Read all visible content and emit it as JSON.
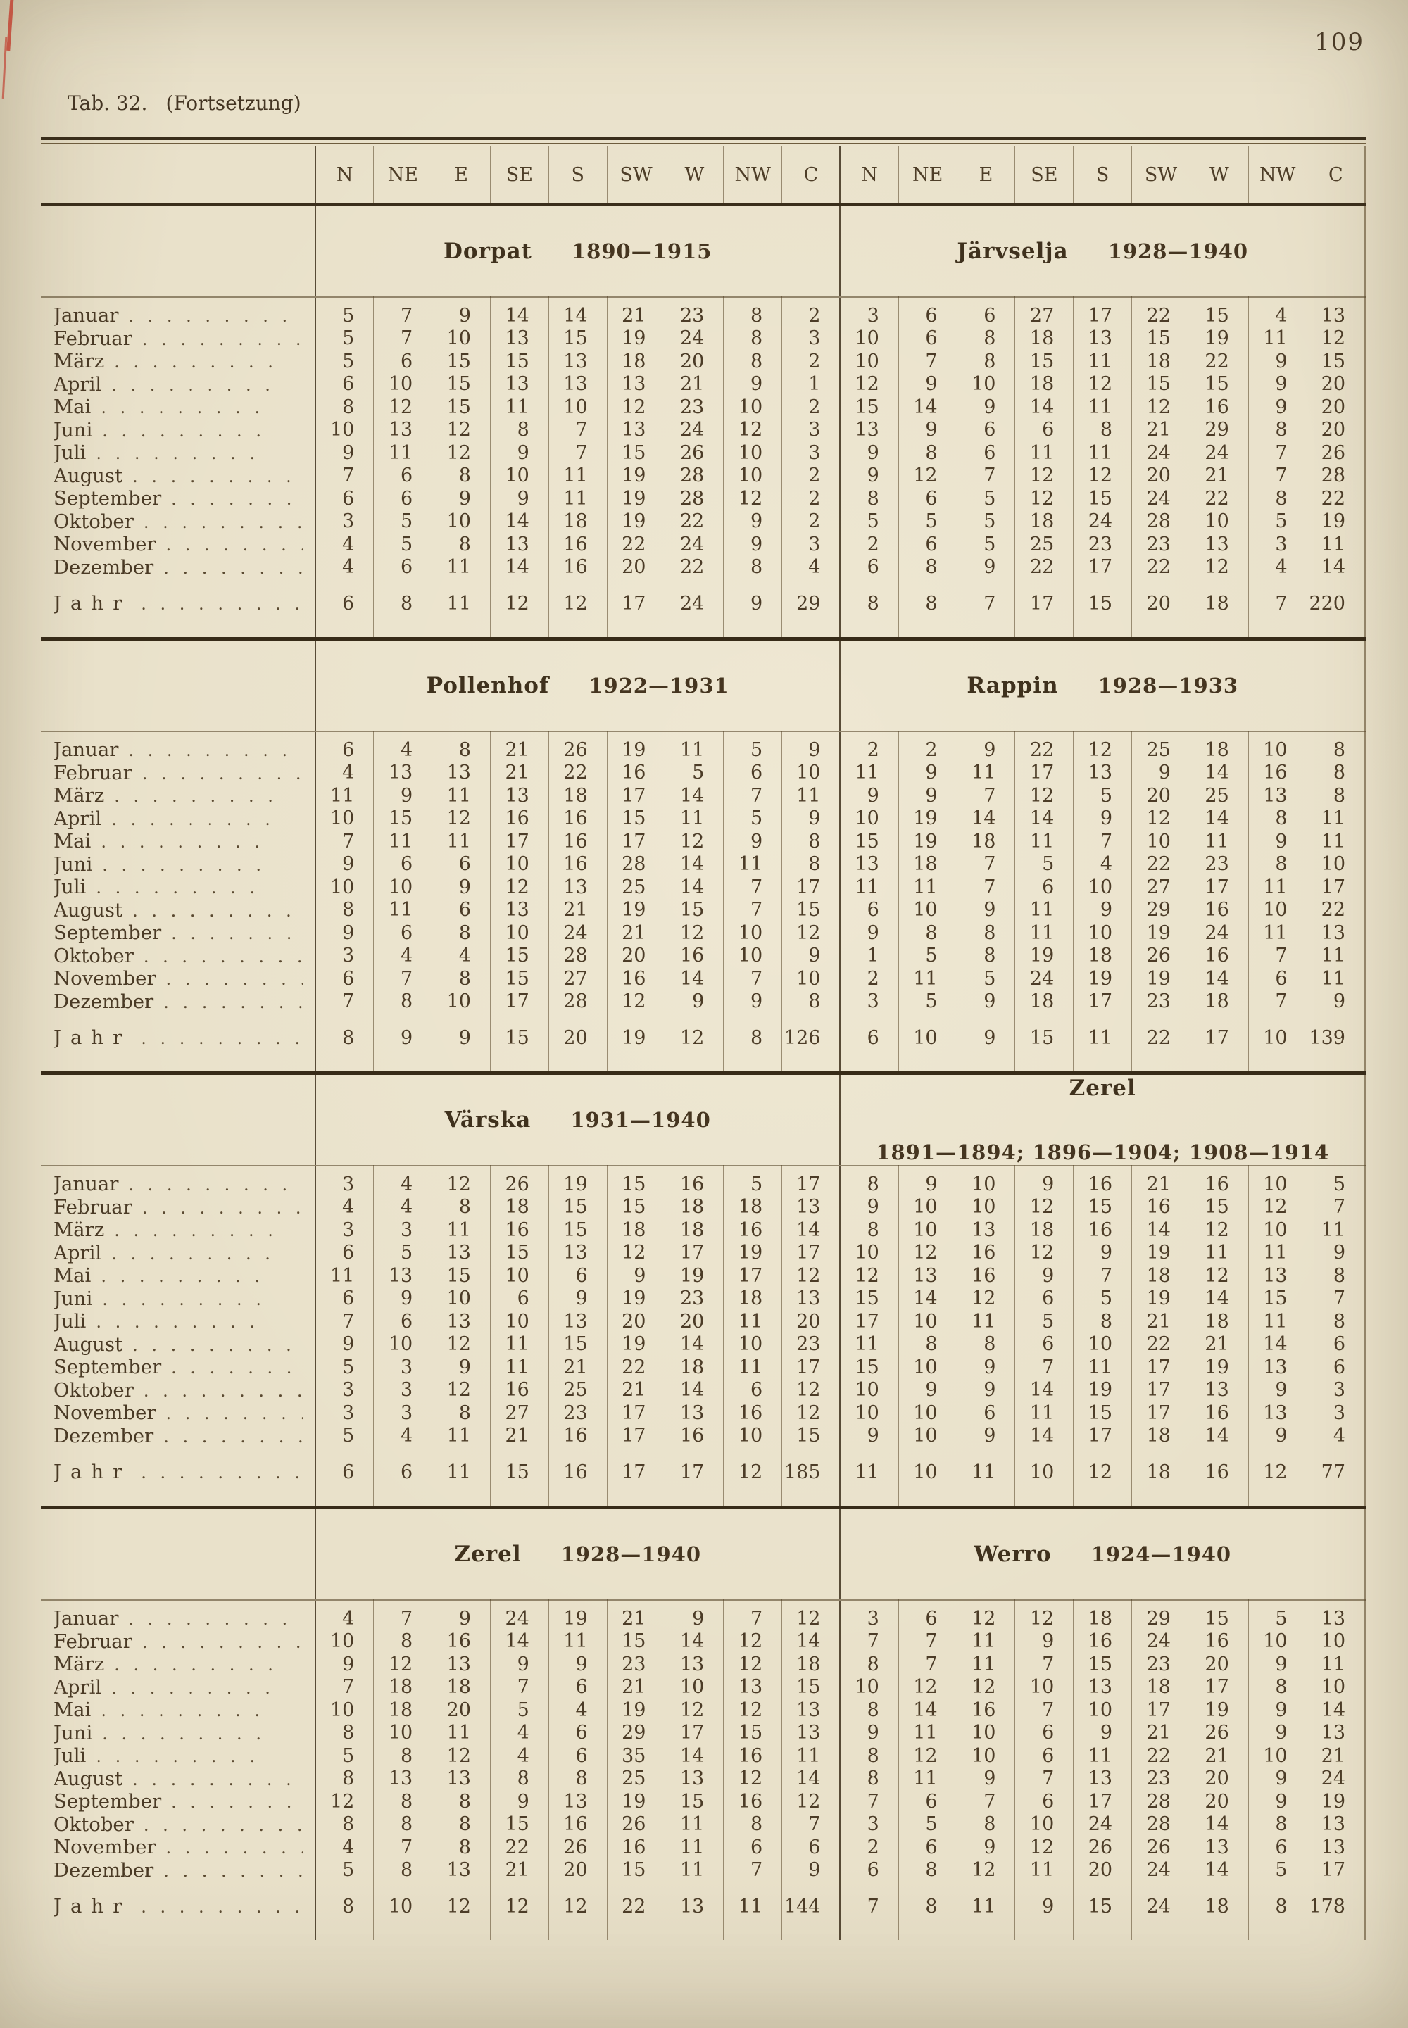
{
  "page": {
    "number": "109",
    "table_label": "Tab. 32.",
    "continuation": "(Fortsetzung)"
  },
  "directions": [
    "N",
    "NE",
    "E",
    "SE",
    "S",
    "SW",
    "W",
    "NW",
    "C"
  ],
  "months": [
    "Januar",
    "Februar",
    "März",
    "April",
    "Mai",
    "Juni",
    "Juli",
    "August",
    "September",
    "Oktober",
    "November",
    "Dezember"
  ],
  "jahr_label": "Jahr",
  "sections": [
    {
      "left": {
        "station": "Dorpat",
        "period": "1890—1915",
        "rows": [
          [
            5,
            7,
            9,
            14,
            14,
            21,
            23,
            8,
            2
          ],
          [
            5,
            7,
            10,
            13,
            15,
            19,
            24,
            8,
            3
          ],
          [
            5,
            6,
            15,
            15,
            13,
            18,
            20,
            8,
            2
          ],
          [
            6,
            10,
            15,
            13,
            13,
            13,
            21,
            9,
            1
          ],
          [
            8,
            12,
            15,
            11,
            10,
            12,
            23,
            10,
            2
          ],
          [
            10,
            13,
            12,
            8,
            7,
            13,
            24,
            12,
            3
          ],
          [
            9,
            11,
            12,
            9,
            7,
            15,
            26,
            10,
            3
          ],
          [
            7,
            6,
            8,
            10,
            11,
            19,
            28,
            10,
            2
          ],
          [
            6,
            6,
            9,
            9,
            11,
            19,
            28,
            12,
            2
          ],
          [
            3,
            5,
            10,
            14,
            18,
            19,
            22,
            9,
            2
          ],
          [
            4,
            5,
            8,
            13,
            16,
            22,
            24,
            9,
            3
          ],
          [
            4,
            6,
            11,
            14,
            16,
            20,
            22,
            8,
            4
          ]
        ],
        "jahr": [
          6,
          8,
          11,
          12,
          12,
          17,
          24,
          9,
          29
        ]
      },
      "right": {
        "station": "Järvselja",
        "period": "1928—1940",
        "rows": [
          [
            3,
            6,
            6,
            27,
            17,
            22,
            15,
            4,
            13
          ],
          [
            10,
            6,
            8,
            18,
            13,
            15,
            19,
            11,
            12
          ],
          [
            10,
            7,
            8,
            15,
            11,
            18,
            22,
            9,
            15
          ],
          [
            12,
            9,
            10,
            18,
            12,
            15,
            15,
            9,
            20
          ],
          [
            15,
            14,
            9,
            14,
            11,
            12,
            16,
            9,
            20
          ],
          [
            13,
            9,
            6,
            6,
            8,
            21,
            29,
            8,
            20
          ],
          [
            9,
            8,
            6,
            11,
            11,
            24,
            24,
            7,
            26
          ],
          [
            9,
            12,
            7,
            12,
            12,
            20,
            21,
            7,
            28
          ],
          [
            8,
            6,
            5,
            12,
            15,
            24,
            22,
            8,
            22
          ],
          [
            5,
            5,
            5,
            18,
            24,
            28,
            10,
            5,
            19
          ],
          [
            2,
            6,
            5,
            25,
            23,
            23,
            13,
            3,
            11
          ],
          [
            6,
            8,
            9,
            22,
            17,
            22,
            12,
            4,
            14
          ]
        ],
        "jahr": [
          8,
          8,
          7,
          17,
          15,
          20,
          18,
          7,
          220
        ]
      }
    },
    {
      "left": {
        "station": "Pollenhof",
        "period": "1922—1931",
        "rows": [
          [
            6,
            4,
            8,
            21,
            26,
            19,
            11,
            5,
            9
          ],
          [
            4,
            13,
            13,
            21,
            22,
            16,
            5,
            6,
            10
          ],
          [
            11,
            9,
            11,
            13,
            18,
            17,
            14,
            7,
            11
          ],
          [
            10,
            15,
            12,
            16,
            16,
            15,
            11,
            5,
            9
          ],
          [
            7,
            11,
            11,
            17,
            16,
            17,
            12,
            9,
            8
          ],
          [
            9,
            6,
            6,
            10,
            16,
            28,
            14,
            11,
            8
          ],
          [
            10,
            10,
            9,
            12,
            13,
            25,
            14,
            7,
            17
          ],
          [
            8,
            11,
            6,
            13,
            21,
            19,
            15,
            7,
            15
          ],
          [
            9,
            6,
            8,
            10,
            24,
            21,
            12,
            10,
            12
          ],
          [
            3,
            4,
            4,
            15,
            28,
            20,
            16,
            10,
            9
          ],
          [
            6,
            7,
            8,
            15,
            27,
            16,
            14,
            7,
            10
          ],
          [
            7,
            8,
            10,
            17,
            28,
            12,
            9,
            9,
            8
          ]
        ],
        "jahr": [
          8,
          9,
          9,
          15,
          20,
          19,
          12,
          8,
          126
        ]
      },
      "right": {
        "station": "Rappin",
        "period": "1928—1933",
        "rows": [
          [
            2,
            2,
            9,
            22,
            12,
            25,
            18,
            10,
            8
          ],
          [
            11,
            9,
            11,
            17,
            13,
            9,
            14,
            16,
            8
          ],
          [
            9,
            9,
            7,
            12,
            5,
            20,
            25,
            13,
            8
          ],
          [
            10,
            19,
            14,
            14,
            9,
            12,
            14,
            8,
            11
          ],
          [
            15,
            19,
            18,
            11,
            7,
            10,
            11,
            9,
            11
          ],
          [
            13,
            18,
            7,
            5,
            4,
            22,
            23,
            8,
            10
          ],
          [
            11,
            11,
            7,
            6,
            10,
            27,
            17,
            11,
            17
          ],
          [
            6,
            10,
            9,
            11,
            9,
            29,
            16,
            10,
            22
          ],
          [
            9,
            8,
            8,
            11,
            10,
            19,
            24,
            11,
            13
          ],
          [
            1,
            5,
            8,
            19,
            18,
            26,
            16,
            7,
            11
          ],
          [
            2,
            11,
            5,
            24,
            19,
            19,
            14,
            6,
            11
          ],
          [
            3,
            5,
            9,
            18,
            17,
            23,
            18,
            7,
            9
          ]
        ],
        "jahr": [
          6,
          10,
          9,
          15,
          11,
          22,
          17,
          10,
          139
        ]
      }
    },
    {
      "left": {
        "station": "Värska",
        "period": "1931—1940",
        "rows": [
          [
            3,
            4,
            12,
            26,
            19,
            15,
            16,
            5,
            17
          ],
          [
            4,
            4,
            8,
            18,
            15,
            15,
            18,
            18,
            13
          ],
          [
            3,
            3,
            11,
            16,
            15,
            18,
            18,
            16,
            14
          ],
          [
            6,
            5,
            13,
            15,
            13,
            12,
            17,
            19,
            17
          ],
          [
            11,
            13,
            15,
            10,
            6,
            9,
            19,
            17,
            12
          ],
          [
            6,
            9,
            10,
            6,
            9,
            19,
            23,
            18,
            13
          ],
          [
            7,
            6,
            13,
            10,
            13,
            20,
            20,
            11,
            20
          ],
          [
            9,
            10,
            12,
            11,
            15,
            19,
            14,
            10,
            23
          ],
          [
            5,
            3,
            9,
            11,
            21,
            22,
            18,
            11,
            17
          ],
          [
            3,
            3,
            12,
            16,
            25,
            21,
            14,
            6,
            12
          ],
          [
            3,
            3,
            8,
            27,
            23,
            17,
            13,
            16,
            12
          ],
          [
            5,
            4,
            11,
            21,
            16,
            17,
            16,
            10,
            15
          ]
        ],
        "jahr": [
          6,
          6,
          11,
          15,
          16,
          17,
          17,
          12,
          185
        ]
      },
      "right": {
        "station": "Zerel",
        "period": "1891—1894; 1896—1904; 1908—1914",
        "rows": [
          [
            8,
            9,
            10,
            9,
            16,
            21,
            16,
            10,
            5
          ],
          [
            9,
            10,
            10,
            12,
            15,
            16,
            15,
            12,
            7
          ],
          [
            8,
            10,
            13,
            18,
            16,
            14,
            12,
            10,
            11
          ],
          [
            10,
            12,
            16,
            12,
            9,
            19,
            11,
            11,
            9
          ],
          [
            12,
            13,
            16,
            9,
            7,
            18,
            12,
            13,
            8
          ],
          [
            15,
            14,
            12,
            6,
            5,
            19,
            14,
            15,
            7
          ],
          [
            17,
            10,
            11,
            5,
            8,
            21,
            18,
            11,
            8
          ],
          [
            11,
            8,
            8,
            6,
            10,
            22,
            21,
            14,
            6
          ],
          [
            15,
            10,
            9,
            7,
            11,
            17,
            19,
            13,
            6
          ],
          [
            10,
            9,
            9,
            14,
            19,
            17,
            13,
            9,
            3
          ],
          [
            10,
            10,
            6,
            11,
            15,
            17,
            16,
            13,
            3
          ],
          [
            9,
            10,
            9,
            14,
            17,
            18,
            14,
            9,
            4
          ]
        ],
        "jahr": [
          11,
          10,
          11,
          10,
          12,
          18,
          16,
          12,
          77
        ]
      }
    },
    {
      "left": {
        "station": "Zerel",
        "period": "1928—1940",
        "rows": [
          [
            4,
            7,
            9,
            24,
            19,
            21,
            9,
            7,
            12
          ],
          [
            10,
            8,
            16,
            14,
            11,
            15,
            14,
            12,
            14
          ],
          [
            9,
            12,
            13,
            9,
            9,
            23,
            13,
            12,
            18
          ],
          [
            7,
            18,
            18,
            7,
            6,
            21,
            10,
            13,
            15
          ],
          [
            10,
            18,
            20,
            5,
            4,
            19,
            12,
            12,
            13
          ],
          [
            8,
            10,
            11,
            4,
            6,
            29,
            17,
            15,
            13
          ],
          [
            5,
            8,
            12,
            4,
            6,
            35,
            14,
            16,
            11
          ],
          [
            8,
            13,
            13,
            8,
            8,
            25,
            13,
            12,
            14
          ],
          [
            12,
            8,
            8,
            9,
            13,
            19,
            15,
            16,
            12
          ],
          [
            8,
            8,
            8,
            15,
            16,
            26,
            11,
            8,
            7
          ],
          [
            4,
            7,
            8,
            22,
            26,
            16,
            11,
            6,
            6
          ],
          [
            5,
            8,
            13,
            21,
            20,
            15,
            11,
            7,
            9
          ]
        ],
        "jahr": [
          8,
          10,
          12,
          12,
          12,
          22,
          13,
          11,
          144
        ]
      },
      "right": {
        "station": "Werro",
        "period": "1924—1940",
        "rows": [
          [
            3,
            6,
            12,
            12,
            18,
            29,
            15,
            5,
            13
          ],
          [
            7,
            7,
            11,
            9,
            16,
            24,
            16,
            10,
            10
          ],
          [
            8,
            7,
            11,
            7,
            15,
            23,
            20,
            9,
            11
          ],
          [
            10,
            12,
            12,
            10,
            13,
            18,
            17,
            8,
            10
          ],
          [
            8,
            14,
            16,
            7,
            10,
            17,
            19,
            9,
            14
          ],
          [
            9,
            11,
            10,
            6,
            9,
            21,
            26,
            9,
            13
          ],
          [
            8,
            12,
            10,
            6,
            11,
            22,
            21,
            10,
            21
          ],
          [
            8,
            11,
            9,
            7,
            13,
            23,
            20,
            9,
            24
          ],
          [
            7,
            6,
            7,
            6,
            17,
            28,
            20,
            9,
            19
          ],
          [
            3,
            5,
            8,
            10,
            24,
            28,
            14,
            8,
            13
          ],
          [
            2,
            6,
            9,
            12,
            26,
            26,
            13,
            6,
            13
          ],
          [
            6,
            8,
            12,
            11,
            20,
            24,
            14,
            5,
            17
          ]
        ],
        "jahr": [
          7,
          8,
          11,
          9,
          15,
          24,
          18,
          8,
          178
        ]
      }
    }
  ]
}
